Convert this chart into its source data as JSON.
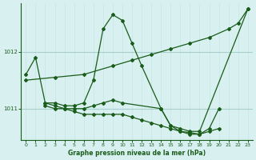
{
  "title": "Graphe pression niveau de la mer (hPa)",
  "background_color": "#d8f0f0",
  "line_color": "#1a5c1a",
  "grid_color_v": "#c8e8e8",
  "grid_color_h": "#a8cece",
  "xlim": [
    -0.5,
    23.5
  ],
  "ylim": [
    1010.45,
    1012.85
  ],
  "yticks": [
    1011,
    1012
  ],
  "xticks": [
    0,
    1,
    2,
    3,
    4,
    5,
    6,
    7,
    8,
    9,
    10,
    11,
    12,
    13,
    14,
    15,
    16,
    17,
    18,
    19,
    20,
    21,
    22,
    23
  ],
  "series": [
    {
      "x": [
        0,
        1,
        2,
        3,
        4,
        5,
        6,
        7,
        8,
        9,
        10,
        11,
        12,
        14,
        15,
        16,
        17,
        18,
        23
      ],
      "y": [
        1011.6,
        1011.9,
        1011.1,
        1011.1,
        1011.05,
        1011.05,
        1011.1,
        1011.5,
        1012.4,
        1012.65,
        1012.55,
        1012.15,
        1011.75,
        1011.0,
        1010.7,
        1010.65,
        1010.6,
        1010.6,
        1012.75
      ]
    },
    {
      "x": [
        0,
        3,
        6,
        9,
        11,
        13,
        15,
        17,
        19,
        21,
        22,
        23
      ],
      "y": [
        1011.5,
        1011.55,
        1011.6,
        1011.75,
        1011.85,
        1011.95,
        1012.05,
        1012.15,
        1012.25,
        1012.4,
        1012.5,
        1012.75
      ]
    },
    {
      "x": [
        2,
        3,
        4,
        5,
        6,
        7,
        8,
        9,
        10,
        14,
        15,
        16,
        17,
        18,
        19,
        20
      ],
      "y": [
        1011.1,
        1011.05,
        1011.0,
        1011.0,
        1011.0,
        1011.05,
        1011.1,
        1011.15,
        1011.1,
        1011.0,
        1010.7,
        1010.6,
        1010.55,
        1010.55,
        1010.65,
        1011.0
      ]
    },
    {
      "x": [
        2,
        3,
        4,
        5,
        6,
        7,
        8,
        9,
        10,
        11,
        12,
        13,
        14,
        15,
        16,
        17,
        18,
        19,
        20
      ],
      "y": [
        1011.05,
        1011.0,
        1011.0,
        1010.95,
        1010.9,
        1010.9,
        1010.9,
        1010.9,
        1010.9,
        1010.85,
        1010.8,
        1010.75,
        1010.7,
        1010.65,
        1010.6,
        1010.58,
        1010.55,
        1010.6,
        1010.65
      ]
    }
  ]
}
